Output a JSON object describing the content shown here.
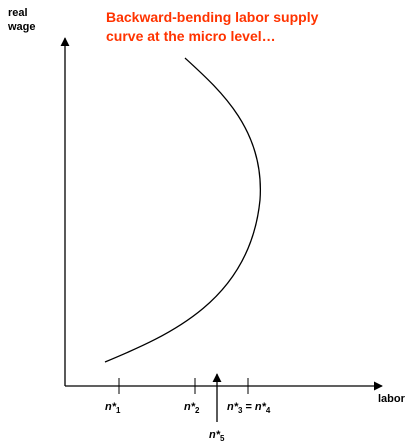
{
  "title": [
    "Backward-bending labor supply",
    "curve at the micro level…"
  ],
  "y_axis_label": [
    "real",
    "wage"
  ],
  "x_axis_label": "labor",
  "x_labels": [
    {
      "parts": [
        {
          "text": "n*",
          "sub": "1"
        }
      ]
    },
    {
      "parts": [
        {
          "text": "n*",
          "sub": "2"
        }
      ]
    },
    {
      "parts": [
        {
          "text": "n*",
          "sub": "3"
        },
        {
          "text": "="
        },
        {
          "text": "n*",
          "sub": "4"
        }
      ]
    },
    {
      "parts": [
        {
          "text": "n*",
          "sub": "5"
        }
      ]
    }
  ]
}
